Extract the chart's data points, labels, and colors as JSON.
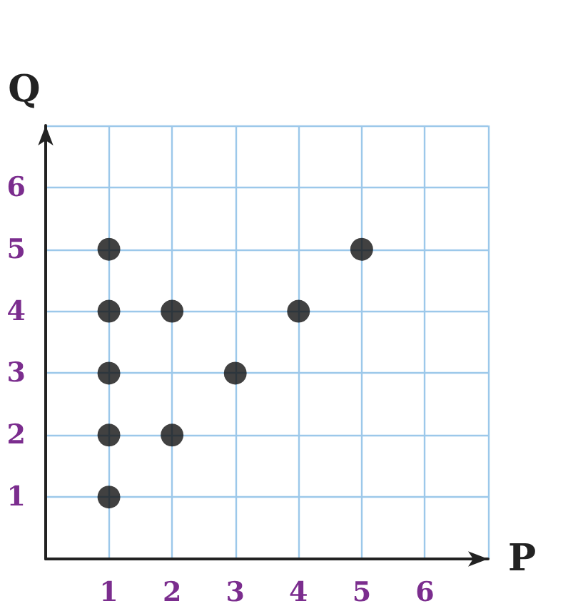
{
  "chart_data": {
    "type": "scatter",
    "xlabel": "P",
    "ylabel": "Q",
    "x": [
      1,
      1,
      1,
      1,
      1,
      2,
      2,
      3,
      4,
      5
    ],
    "values": [
      1,
      2,
      3,
      4,
      5,
      2,
      4,
      3,
      4,
      5
    ],
    "color": "#111111",
    "marker": "circle",
    "grid": true,
    "xlim": [
      0,
      7
    ],
    "ylim": [
      0,
      7
    ],
    "xticks": [
      1,
      2,
      3,
      4,
      5,
      6,
      {
        "value": 7,
        "label": null
      }
    ],
    "yticks": [
      1,
      2,
      3,
      4,
      5,
      6,
      {
        "value": 7,
        "label": null
      }
    ]
  }
}
